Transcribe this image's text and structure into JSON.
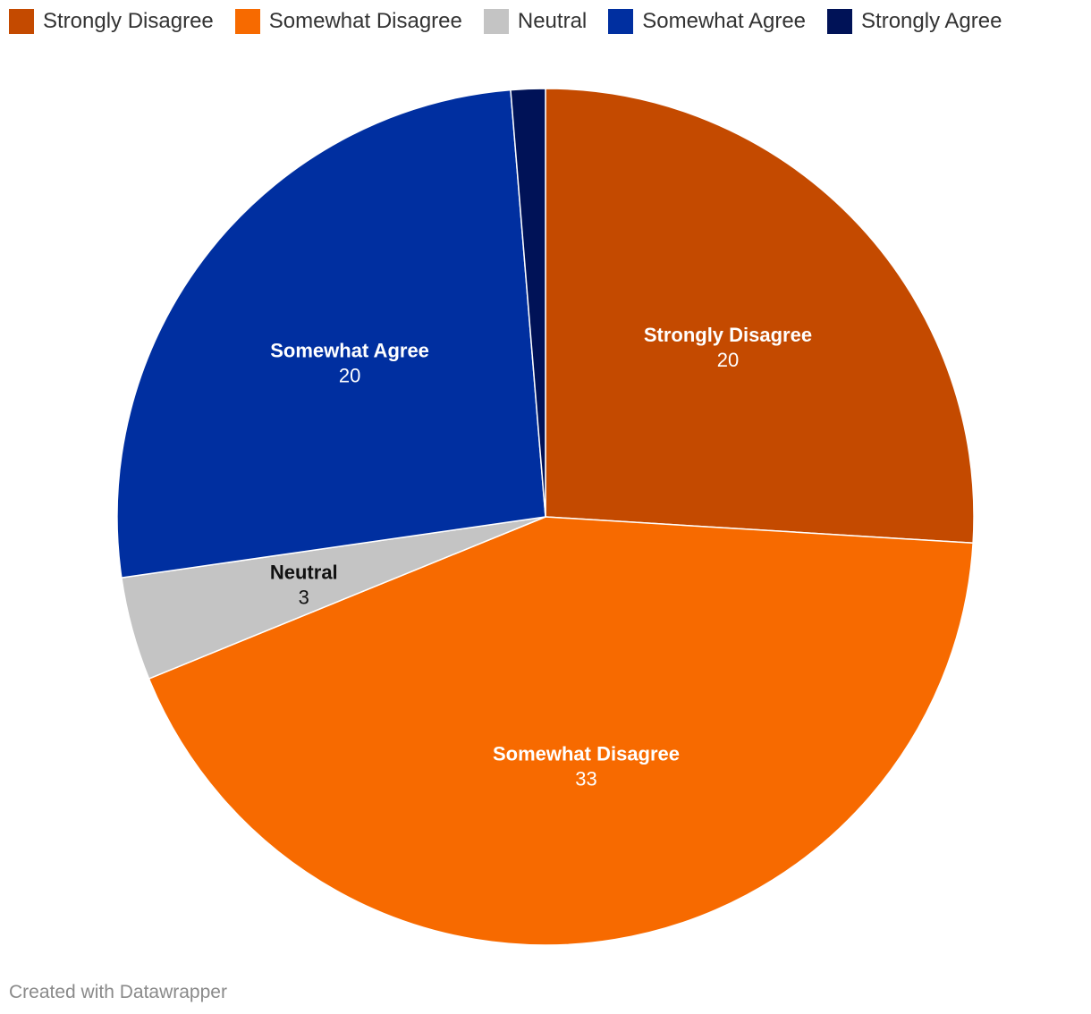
{
  "chart_data": {
    "type": "pie",
    "categories": [
      "Strongly Disagree",
      "Somewhat Disagree",
      "Neutral",
      "Somewhat Agree",
      "Strongly Agree"
    ],
    "values": [
      20,
      33,
      3,
      20,
      1
    ],
    "colors": [
      "#c44a00",
      "#f76a00",
      "#c4c4c4",
      "#002fa0",
      "#001257"
    ],
    "label_colors": [
      "#ffffff",
      "#ffffff",
      "#111111",
      "#ffffff",
      "#ffffff"
    ],
    "value_labels": [
      "20",
      "33",
      "3",
      "20",
      ""
    ],
    "show_label": [
      true,
      true,
      true,
      true,
      false
    ],
    "legend_position": "top-left",
    "start_angle": "12 o'clock",
    "direction": "clockwise"
  },
  "legend": {
    "items": [
      {
        "label": "Strongly Disagree",
        "color": "#c44a00"
      },
      {
        "label": "Somewhat Disagree",
        "color": "#f76a00"
      },
      {
        "label": "Neutral",
        "color": "#c4c4c4"
      },
      {
        "label": "Somewhat Agree",
        "color": "#002fa0"
      },
      {
        "label": "Strongly Agree",
        "color": "#001257"
      }
    ]
  },
  "footer": {
    "credit": "Created with Datawrapper"
  }
}
